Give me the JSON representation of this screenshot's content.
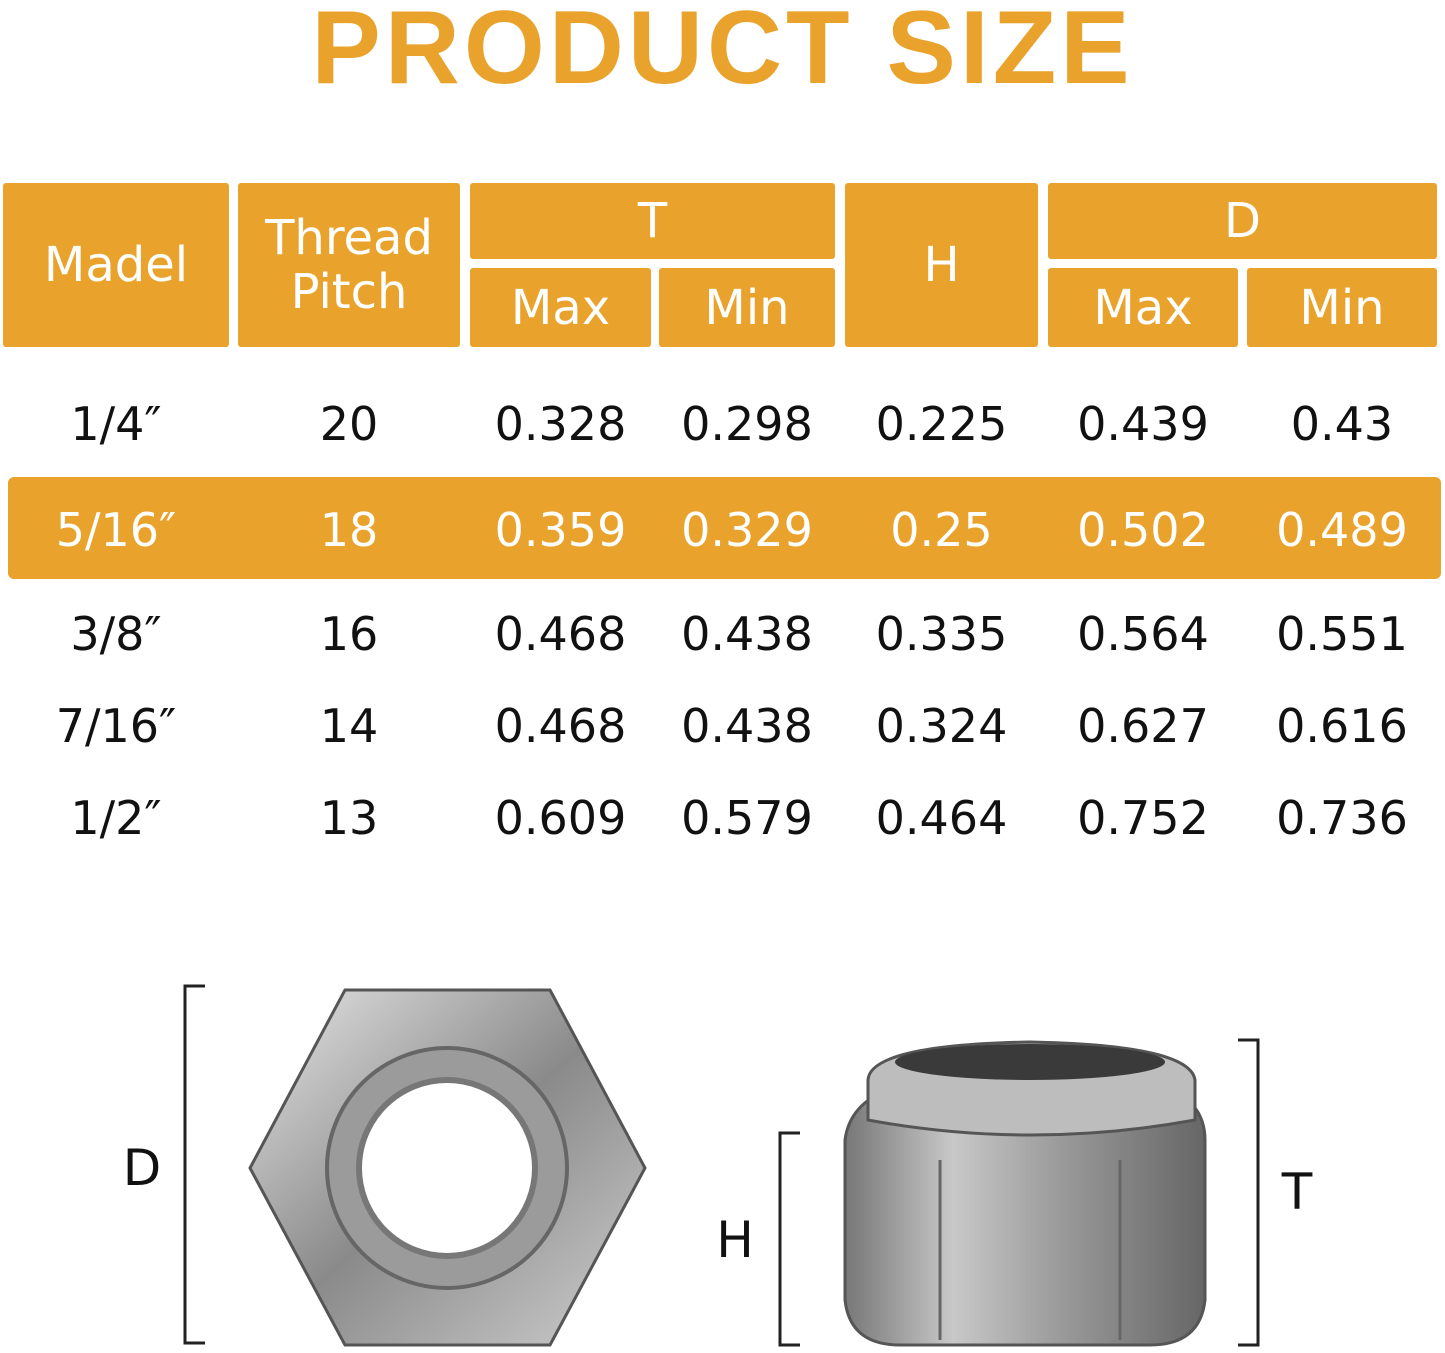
{
  "title": "PRODUCT SIZE",
  "table": {
    "header": {
      "model": "Madel",
      "thread_pitch": "Thread Pitch",
      "t": "T",
      "t_max": "Max",
      "t_min": "Min",
      "h": "H",
      "d": "D",
      "d_max": "Max",
      "d_min": "Min"
    },
    "rows": [
      [
        "1/4″",
        "20",
        "0.328",
        "0.298",
        "0.225",
        "0.439",
        "0.43"
      ],
      [
        "5/16″",
        "18",
        "0.359",
        "0.329",
        "0.25",
        "0.502",
        "0.489"
      ],
      [
        "3/8″",
        "16",
        "0.468",
        "0.438",
        "0.335",
        "0.564",
        "0.551"
      ],
      [
        "7/16″",
        "14",
        "0.468",
        "0.438",
        "0.324",
        "0.627",
        "0.616"
      ],
      [
        "1/2″",
        "13",
        "0.609",
        "0.579",
        "0.464",
        "0.752",
        "0.736"
      ]
    ],
    "highlighted_row": 1
  },
  "diagram": {
    "labels": {
      "d": "D",
      "h": "H",
      "t": "T"
    }
  }
}
